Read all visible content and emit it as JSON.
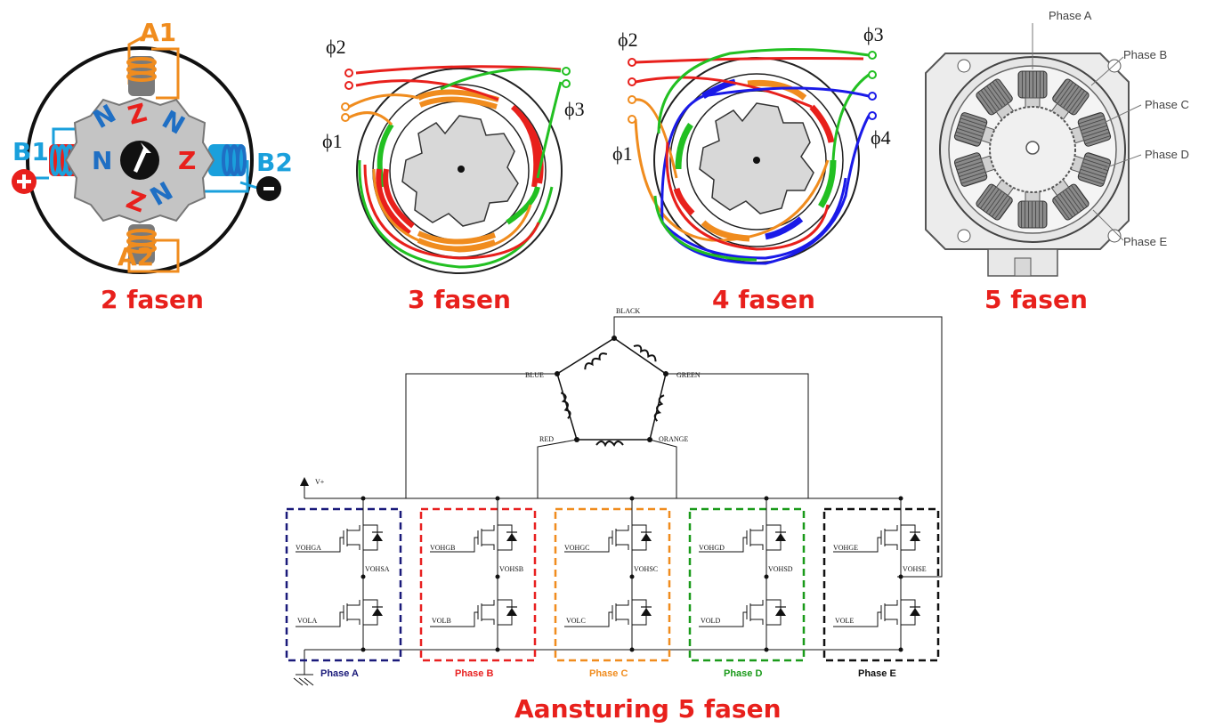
{
  "colors": {
    "caption": "#e8201c",
    "two_phase_orange": "#f08c1e",
    "two_phase_blue": "#1aa0dc",
    "rotor_red": "#e8201c",
    "rotor_blue": "#1f6fc4",
    "phase_a": "#1a1a7a",
    "phase_b": "#e82020",
    "phase_c": "#f08c1e",
    "phase_d": "#1a9a1a",
    "phase_e": "#111111",
    "wire_green": "#22c022",
    "wire_blue": "#1a1ae8"
  },
  "two_phase": {
    "caption": "2 fasen",
    "labels": {
      "a1": "A1",
      "a2": "A2",
      "b1": "B1",
      "b2": "B2"
    },
    "pole_letters": [
      "N",
      "N",
      "N",
      "N",
      "Z",
      "Z",
      "Z",
      "Z"
    ]
  },
  "three_phase": {
    "caption": "3 fasen",
    "phi1": "ϕ1",
    "phi2": "ϕ2",
    "phi3": "ϕ3"
  },
  "four_phase": {
    "caption": "4 fasen",
    "phi1": "ϕ1",
    "phi2": "ϕ2",
    "phi3": "ϕ3",
    "phi4": "ϕ4"
  },
  "five_phase": {
    "caption": "5 fasen",
    "labels": [
      "Phase A",
      "Phase B",
      "Phase C",
      "Phase D",
      "Phase E"
    ]
  },
  "driver": {
    "caption": "Aansturing 5 fasen",
    "wire_labels": {
      "black": "BLACK",
      "blue": "BLUE",
      "green": "GREEN",
      "red": "RED",
      "orange": "ORANGE"
    },
    "supply": "V+",
    "phases": [
      {
        "name": "Phase A",
        "high": "VOHGA",
        "out": "VOHSA",
        "low": "VOLA"
      },
      {
        "name": "Phase B",
        "high": "VOHGB",
        "out": "VOHSB",
        "low": "VOLB"
      },
      {
        "name": "Phase C",
        "high": "VOHGC",
        "out": "VOHSC",
        "low": "VOLC"
      },
      {
        "name": "Phase D",
        "high": "VOHGD",
        "out": "VOHSD",
        "low": "VOLD"
      },
      {
        "name": "Phase E",
        "high": "VOHGE",
        "out": "VOHSE",
        "low": "VOLE"
      }
    ]
  }
}
